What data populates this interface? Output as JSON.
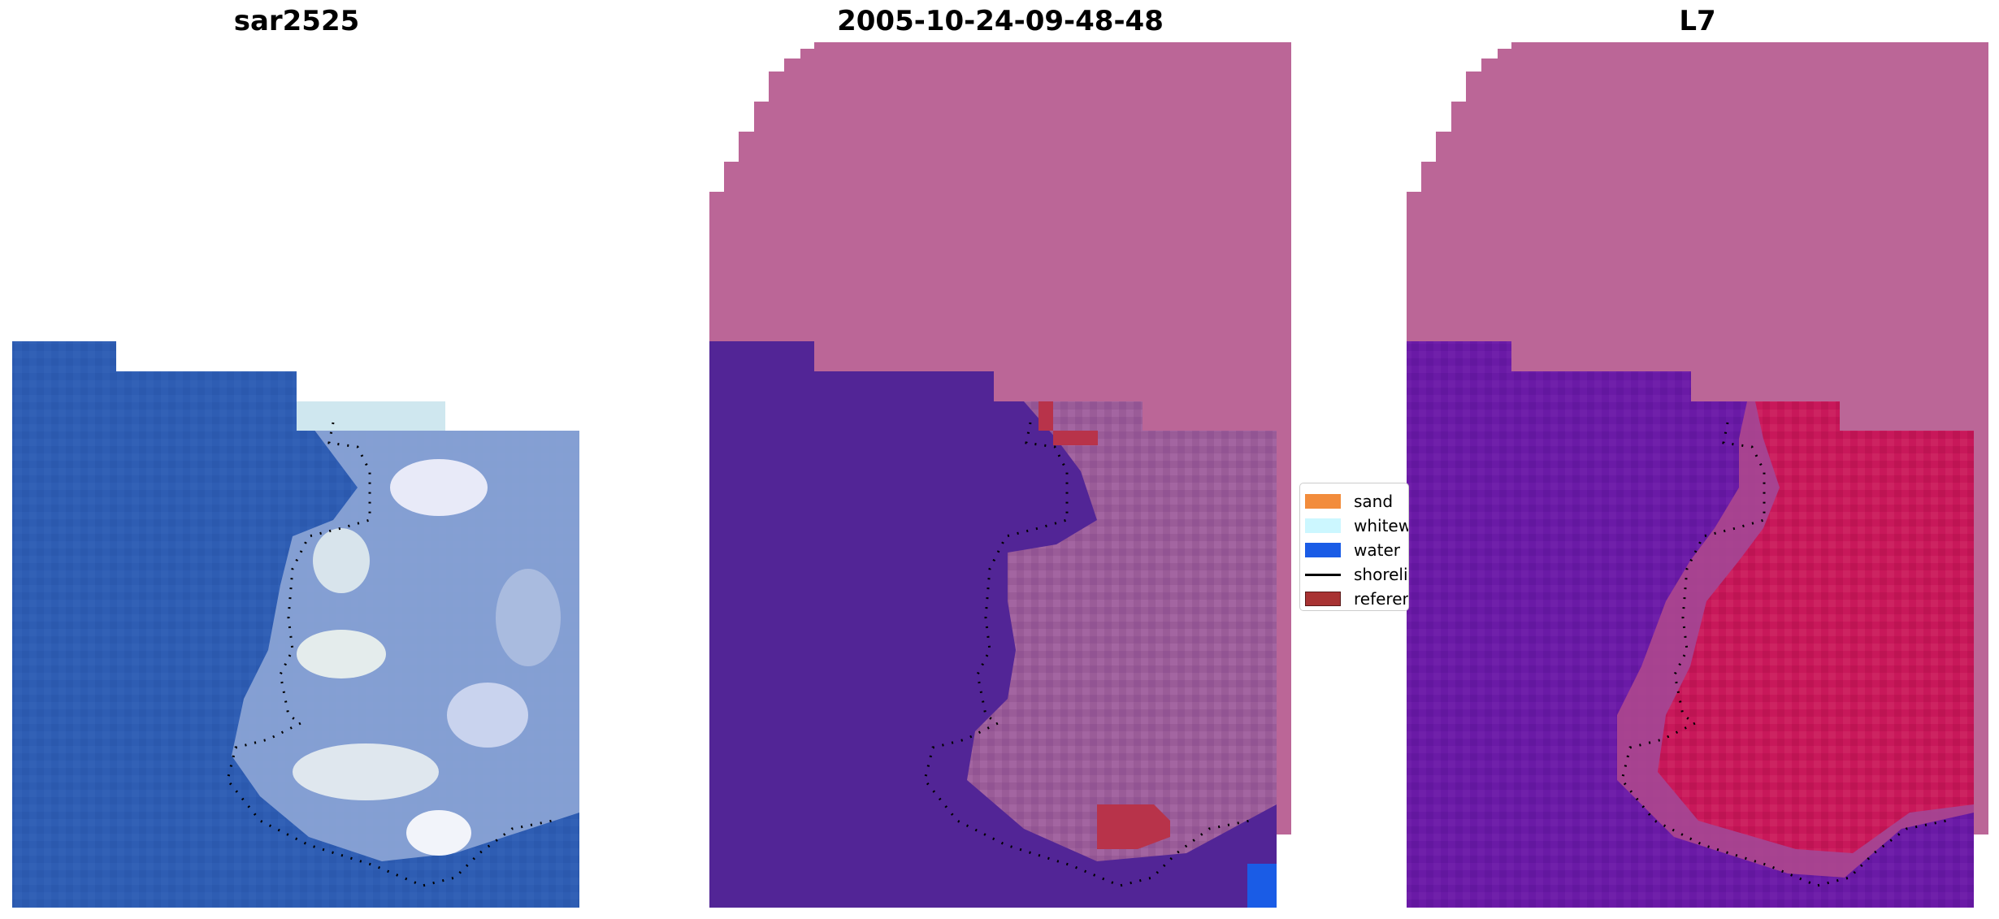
{
  "panels": [
    {
      "title": "sar2525"
    },
    {
      "title": "2005-10-24-09-48-48"
    },
    {
      "title": "L7"
    }
  ],
  "legend": {
    "items": [
      {
        "label": "sand",
        "color": "#f28c3c",
        "kind": "patch"
      },
      {
        "label": "whitewater",
        "color": "#ccf7ff",
        "kind": "patch"
      },
      {
        "label": "water",
        "color": "#1a5ce6",
        "kind": "patch"
      },
      {
        "label": "shoreline",
        "color": "#000000",
        "kind": "line"
      },
      {
        "label": "reference shoreline",
        "color": "#a83232",
        "kind": "patch"
      }
    ]
  },
  "colors": {
    "water_rgb": "#2e5db3",
    "cloud_rgb": "#c8d2ea",
    "nodata_overlay": "#bb6697",
    "water_class": "#522596",
    "land_class_2": "#c2134d",
    "water_class_3": "#6a1aa6"
  }
}
